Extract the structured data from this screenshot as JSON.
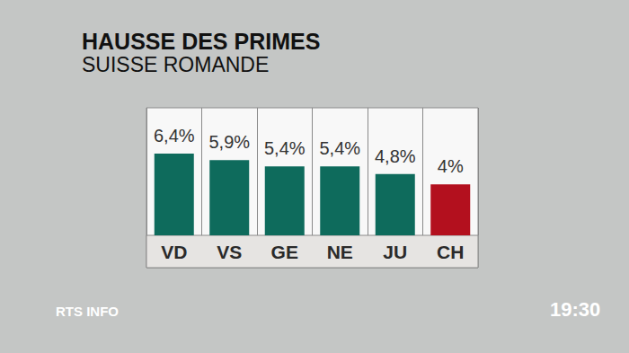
{
  "chart_data": {
    "type": "bar",
    "title": "HAUSSE DES PRIMES",
    "subtitle": "SUISSE ROMANDE",
    "categories": [
      "VD",
      "VS",
      "GE",
      "NE",
      "JU",
      "CH"
    ],
    "values": [
      6.4,
      5.9,
      5.4,
      5.4,
      4.8,
      4
    ],
    "value_labels": [
      "6,4%",
      "5,9%",
      "5,4%",
      "5,4%",
      "4,8%",
      "4%"
    ],
    "colors": [
      "#0e6b5c",
      "#0e6b5c",
      "#0e6b5c",
      "#0e6b5c",
      "#0e6b5c",
      "#b3101e"
    ],
    "ylim": [
      0,
      10
    ],
    "yticks": [
      0,
      10
    ],
    "grid": false,
    "data_labels": true,
    "tick_labels": "x",
    "annotations": [
      "RTS INFO",
      "19:30"
    ]
  }
}
